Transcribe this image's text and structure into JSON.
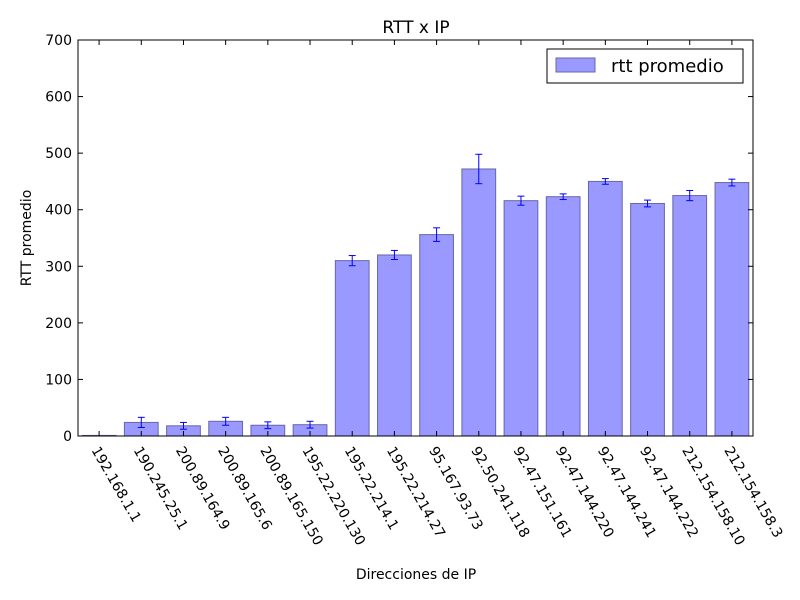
{
  "chart_data": {
    "type": "bar",
    "title": "RTT x IP",
    "xlabel": "Direcciones de IP",
    "ylabel": "RTT promedio",
    "ylim": [
      0,
      700
    ],
    "yticks": [
      0,
      100,
      200,
      300,
      400,
      500,
      600,
      700
    ],
    "grid": false,
    "legend_position": "top-right",
    "bar_color": "#9999ff",
    "bar_edge_color": "#6666aa",
    "errorbar_color": "#0000ff",
    "categories": [
      "192.168.1.1",
      "190.245.25.1",
      "200.89.164.9",
      "200.89.165.6",
      "200.89.165.150",
      "195.22.220.130",
      "195.22.214.1",
      "195.22.214.27",
      "95.167.93.73",
      "92.50.241.118",
      "92.47.151.161",
      "92.47.144.220",
      "92.47.144.241",
      "92.47.144.222",
      "212.154.158.10",
      "212.154.158.3"
    ],
    "series": [
      {
        "name": "rtt promedio",
        "values": [
          1,
          24,
          18,
          26,
          19,
          20,
          310,
          320,
          356,
          472,
          416,
          423,
          450,
          411,
          425,
          448
        ],
        "errors": [
          0,
          9,
          6,
          7,
          6,
          6,
          9,
          8,
          12,
          26,
          8,
          5,
          5,
          6,
          9,
          6
        ]
      }
    ]
  }
}
